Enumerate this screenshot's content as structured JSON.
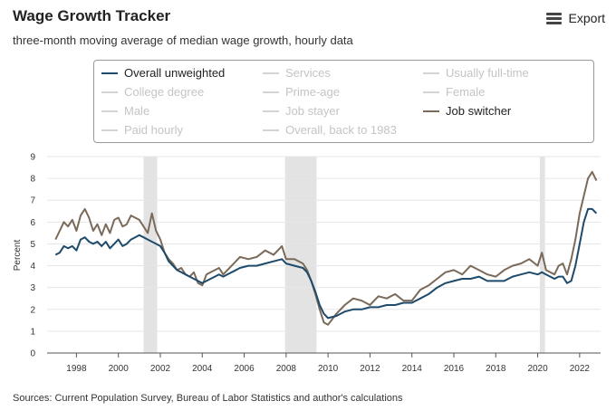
{
  "header": {
    "title": "Wage Growth Tracker",
    "subtitle": "three-month moving average of median wage growth, hourly data",
    "export_label": "Export",
    "export_icon": "hamburger-menu-icon"
  },
  "footer": {
    "source": "Sources: Current Population Survey, Bureau of Labor Statistics and author's calculations"
  },
  "legend": {
    "items": [
      {
        "label": "Overall unweighted",
        "active": true,
        "color": "#1e4a6b"
      },
      {
        "label": "Services",
        "active": false
      },
      {
        "label": "Usually full-time",
        "active": false
      },
      {
        "label": "College degree",
        "active": false
      },
      {
        "label": "Prime-age",
        "active": false
      },
      {
        "label": "Female",
        "active": false
      },
      {
        "label": "Male",
        "active": false
      },
      {
        "label": "Job stayer",
        "active": false
      },
      {
        "label": "Job switcher",
        "active": true,
        "color": "#7a6a5a"
      },
      {
        "label": "Paid hourly",
        "active": false
      },
      {
        "label": "Overall, back to 1983",
        "active": false
      }
    ]
  },
  "colors": {
    "overall": "#1e4a6b",
    "switcher": "#7a6a5a",
    "recession": "#e3e3e3",
    "grid": "#e6e6e6"
  },
  "chart_data": {
    "type": "line",
    "title": "Wage Growth Tracker",
    "subtitle": "three-month moving average of median wage growth, hourly data",
    "xlabel": "",
    "ylabel": "Percent",
    "xlim": [
      1996.6,
      2023.0
    ],
    "ylim": [
      0,
      9
    ],
    "x_ticks": [
      "1998",
      "2000",
      "2002",
      "2004",
      "2006",
      "2008",
      "2010",
      "2012",
      "2014",
      "2016",
      "2018",
      "2020",
      "2022"
    ],
    "y_ticks": [
      "0",
      "1",
      "2",
      "3",
      "4",
      "5",
      "6",
      "7",
      "8",
      "9"
    ],
    "grid": true,
    "recession_bands": [
      [
        2001.2,
        2001.85
      ],
      [
        2007.95,
        2009.45
      ],
      [
        2020.1,
        2020.35
      ]
    ],
    "series": [
      {
        "name": "Overall unweighted",
        "color": "#1e4a6b",
        "points": [
          [
            1997.0,
            4.5
          ],
          [
            1997.2,
            4.6
          ],
          [
            1997.4,
            4.9
          ],
          [
            1997.6,
            4.8
          ],
          [
            1997.8,
            4.9
          ],
          [
            1998.0,
            4.7
          ],
          [
            1998.2,
            5.2
          ],
          [
            1998.4,
            5.3
          ],
          [
            1998.6,
            5.1
          ],
          [
            1998.8,
            5.0
          ],
          [
            1999.0,
            5.1
          ],
          [
            1999.2,
            4.9
          ],
          [
            1999.4,
            5.1
          ],
          [
            1999.6,
            4.8
          ],
          [
            1999.8,
            5.0
          ],
          [
            2000.0,
            5.2
          ],
          [
            2000.2,
            4.9
          ],
          [
            2000.4,
            5.0
          ],
          [
            2000.6,
            5.2
          ],
          [
            2000.8,
            5.3
          ],
          [
            2001.0,
            5.4
          ],
          [
            2001.2,
            5.3
          ],
          [
            2001.4,
            5.2
          ],
          [
            2001.6,
            5.1
          ],
          [
            2001.8,
            5.0
          ],
          [
            2002.0,
            4.9
          ],
          [
            2002.2,
            4.6
          ],
          [
            2002.4,
            4.2
          ],
          [
            2002.6,
            4.0
          ],
          [
            2002.8,
            3.8
          ],
          [
            2003.0,
            3.7
          ],
          [
            2003.2,
            3.6
          ],
          [
            2003.4,
            3.5
          ],
          [
            2003.6,
            3.4
          ],
          [
            2003.8,
            3.3
          ],
          [
            2004.0,
            3.2
          ],
          [
            2004.2,
            3.3
          ],
          [
            2004.4,
            3.4
          ],
          [
            2004.6,
            3.5
          ],
          [
            2004.8,
            3.6
          ],
          [
            2005.0,
            3.5
          ],
          [
            2005.4,
            3.7
          ],
          [
            2005.8,
            3.9
          ],
          [
            2006.2,
            4.0
          ],
          [
            2006.6,
            4.0
          ],
          [
            2007.0,
            4.1
          ],
          [
            2007.4,
            4.2
          ],
          [
            2007.8,
            4.3
          ],
          [
            2008.0,
            4.1
          ],
          [
            2008.4,
            4.0
          ],
          [
            2008.8,
            3.9
          ],
          [
            2009.0,
            3.7
          ],
          [
            2009.2,
            3.3
          ],
          [
            2009.4,
            2.8
          ],
          [
            2009.6,
            2.2
          ],
          [
            2009.8,
            1.8
          ],
          [
            2010.0,
            1.6
          ],
          [
            2010.4,
            1.7
          ],
          [
            2010.8,
            1.9
          ],
          [
            2011.2,
            2.0
          ],
          [
            2011.6,
            2.0
          ],
          [
            2012.0,
            2.1
          ],
          [
            2012.4,
            2.1
          ],
          [
            2012.8,
            2.2
          ],
          [
            2013.2,
            2.2
          ],
          [
            2013.6,
            2.3
          ],
          [
            2014.0,
            2.3
          ],
          [
            2014.4,
            2.5
          ],
          [
            2014.8,
            2.7
          ],
          [
            2015.2,
            3.0
          ],
          [
            2015.6,
            3.2
          ],
          [
            2016.0,
            3.3
          ],
          [
            2016.4,
            3.4
          ],
          [
            2016.8,
            3.4
          ],
          [
            2017.2,
            3.5
          ],
          [
            2017.6,
            3.3
          ],
          [
            2018.0,
            3.3
          ],
          [
            2018.4,
            3.3
          ],
          [
            2018.8,
            3.5
          ],
          [
            2019.2,
            3.6
          ],
          [
            2019.6,
            3.7
          ],
          [
            2020.0,
            3.6
          ],
          [
            2020.2,
            3.7
          ],
          [
            2020.4,
            3.6
          ],
          [
            2020.8,
            3.4
          ],
          [
            2021.0,
            3.5
          ],
          [
            2021.2,
            3.5
          ],
          [
            2021.4,
            3.2
          ],
          [
            2021.6,
            3.3
          ],
          [
            2021.8,
            4.0
          ],
          [
            2022.0,
            5.0
          ],
          [
            2022.2,
            6.0
          ],
          [
            2022.4,
            6.6
          ],
          [
            2022.6,
            6.6
          ],
          [
            2022.8,
            6.4
          ]
        ]
      },
      {
        "name": "Job switcher",
        "color": "#7a6a5a",
        "points": [
          [
            1997.0,
            5.2
          ],
          [
            1997.2,
            5.6
          ],
          [
            1997.4,
            6.0
          ],
          [
            1997.6,
            5.8
          ],
          [
            1997.8,
            6.1
          ],
          [
            1998.0,
            5.6
          ],
          [
            1998.2,
            6.3
          ],
          [
            1998.4,
            6.6
          ],
          [
            1998.6,
            6.2
          ],
          [
            1998.8,
            5.6
          ],
          [
            1999.0,
            5.9
          ],
          [
            1999.2,
            5.4
          ],
          [
            1999.4,
            5.9
          ],
          [
            1999.6,
            5.5
          ],
          [
            1999.8,
            6.1
          ],
          [
            2000.0,
            6.2
          ],
          [
            2000.2,
            5.8
          ],
          [
            2000.4,
            5.9
          ],
          [
            2000.6,
            6.3
          ],
          [
            2000.8,
            6.2
          ],
          [
            2001.0,
            6.1
          ],
          [
            2001.2,
            5.8
          ],
          [
            2001.4,
            5.5
          ],
          [
            2001.6,
            6.4
          ],
          [
            2001.8,
            5.6
          ],
          [
            2002.0,
            5.2
          ],
          [
            2002.2,
            4.6
          ],
          [
            2002.4,
            4.3
          ],
          [
            2002.6,
            4.1
          ],
          [
            2002.8,
            3.8
          ],
          [
            2003.0,
            3.9
          ],
          [
            2003.2,
            3.6
          ],
          [
            2003.4,
            3.5
          ],
          [
            2003.6,
            3.7
          ],
          [
            2003.8,
            3.2
          ],
          [
            2004.0,
            3.1
          ],
          [
            2004.2,
            3.6
          ],
          [
            2004.4,
            3.7
          ],
          [
            2004.6,
            3.8
          ],
          [
            2004.8,
            3.9
          ],
          [
            2005.0,
            3.6
          ],
          [
            2005.4,
            4.0
          ],
          [
            2005.8,
            4.4
          ],
          [
            2006.2,
            4.3
          ],
          [
            2006.6,
            4.4
          ],
          [
            2007.0,
            4.7
          ],
          [
            2007.4,
            4.5
          ],
          [
            2007.8,
            4.9
          ],
          [
            2008.0,
            4.3
          ],
          [
            2008.4,
            4.3
          ],
          [
            2008.8,
            4.1
          ],
          [
            2009.0,
            3.8
          ],
          [
            2009.2,
            3.3
          ],
          [
            2009.4,
            2.7
          ],
          [
            2009.6,
            2.0
          ],
          [
            2009.8,
            1.4
          ],
          [
            2010.0,
            1.3
          ],
          [
            2010.4,
            1.8
          ],
          [
            2010.8,
            2.2
          ],
          [
            2011.2,
            2.5
          ],
          [
            2011.6,
            2.4
          ],
          [
            2012.0,
            2.2
          ],
          [
            2012.4,
            2.6
          ],
          [
            2012.8,
            2.5
          ],
          [
            2013.2,
            2.7
          ],
          [
            2013.6,
            2.4
          ],
          [
            2014.0,
            2.4
          ],
          [
            2014.4,
            2.9
          ],
          [
            2014.8,
            3.1
          ],
          [
            2015.2,
            3.4
          ],
          [
            2015.6,
            3.7
          ],
          [
            2016.0,
            3.8
          ],
          [
            2016.4,
            3.6
          ],
          [
            2016.8,
            4.0
          ],
          [
            2017.2,
            3.8
          ],
          [
            2017.6,
            3.6
          ],
          [
            2018.0,
            3.5
          ],
          [
            2018.4,
            3.8
          ],
          [
            2018.8,
            4.0
          ],
          [
            2019.2,
            4.1
          ],
          [
            2019.6,
            4.3
          ],
          [
            2020.0,
            4.0
          ],
          [
            2020.2,
            4.6
          ],
          [
            2020.4,
            3.8
          ],
          [
            2020.8,
            3.6
          ],
          [
            2021.0,
            4.0
          ],
          [
            2021.2,
            4.1
          ],
          [
            2021.4,
            3.6
          ],
          [
            2021.6,
            4.3
          ],
          [
            2021.8,
            5.2
          ],
          [
            2022.0,
            6.4
          ],
          [
            2022.2,
            7.2
          ],
          [
            2022.4,
            8.0
          ],
          [
            2022.6,
            8.3
          ],
          [
            2022.8,
            7.9
          ]
        ]
      }
    ]
  }
}
